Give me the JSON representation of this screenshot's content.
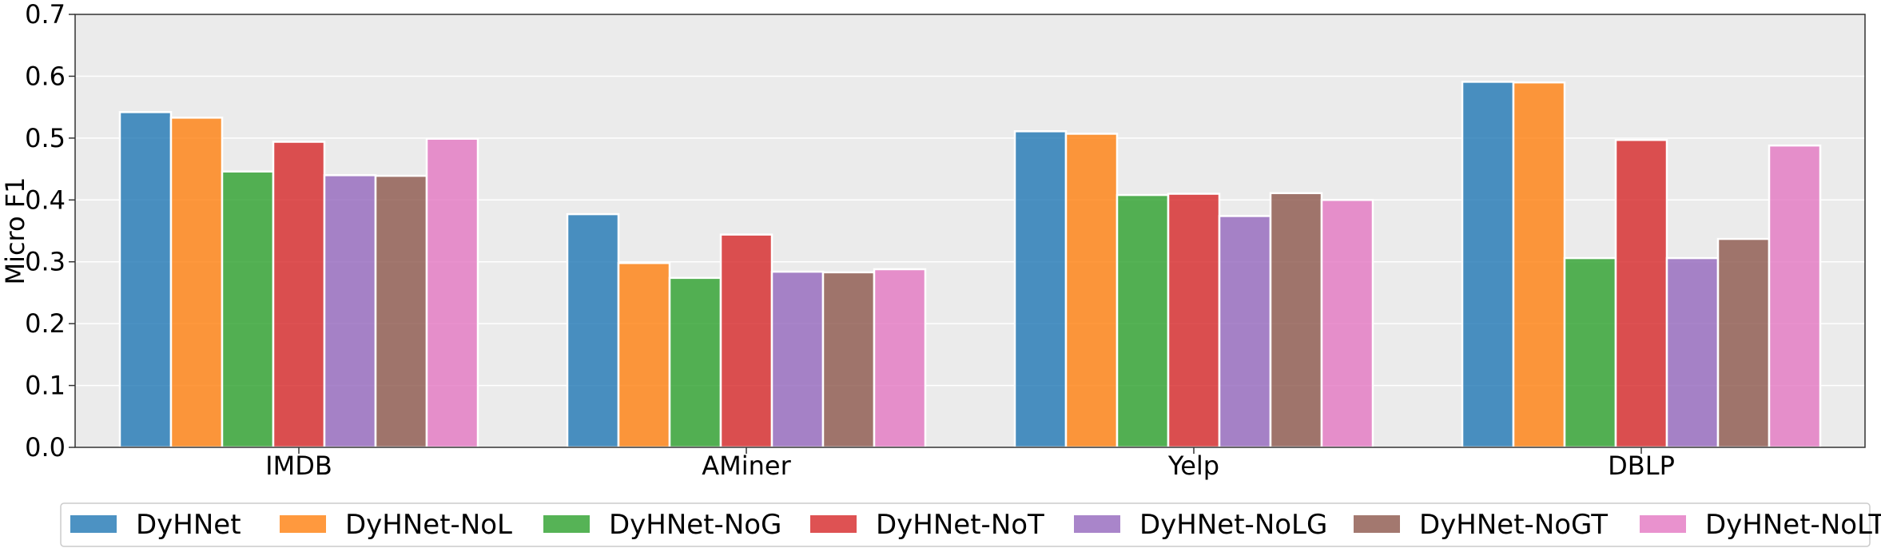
{
  "chart_data": {
    "type": "bar",
    "title": "",
    "xlabel": "",
    "ylabel": "Micro F1",
    "ylim": [
      0,
      0.7
    ],
    "yticks": [
      "0.0",
      "0.1",
      "0.2",
      "0.3",
      "0.4",
      "0.5",
      "0.6",
      "0.7"
    ],
    "categories": [
      "IMDB",
      "AMiner",
      "Yelp",
      "DBLP"
    ],
    "grid": "horizontal",
    "legend_position": "bottom",
    "series": [
      {
        "name": "DyHNet",
        "color": "#1f77b4",
        "values": [
          0.542,
          0.377,
          0.511,
          0.591
        ]
      },
      {
        "name": "DyHNet-NoL",
        "color": "#ff7f0e",
        "values": [
          0.533,
          0.298,
          0.507,
          0.59
        ]
      },
      {
        "name": "DyHNet-NoG",
        "color": "#2ca02c",
        "values": [
          0.446,
          0.274,
          0.408,
          0.306
        ]
      },
      {
        "name": "DyHNet-NoT",
        "color": "#d62728",
        "values": [
          0.494,
          0.344,
          0.41,
          0.497
        ]
      },
      {
        "name": "DyHNet-NoLG",
        "color": "#9467bd",
        "values": [
          0.44,
          0.284,
          0.374,
          0.306
        ]
      },
      {
        "name": "DyHNet-NoGT",
        "color": "#8c564b",
        "values": [
          0.439,
          0.283,
          0.411,
          0.337
        ]
      },
      {
        "name": "DyHNet-NoLT",
        "color": "#e377c2",
        "values": [
          0.499,
          0.288,
          0.4,
          0.488
        ]
      }
    ]
  }
}
